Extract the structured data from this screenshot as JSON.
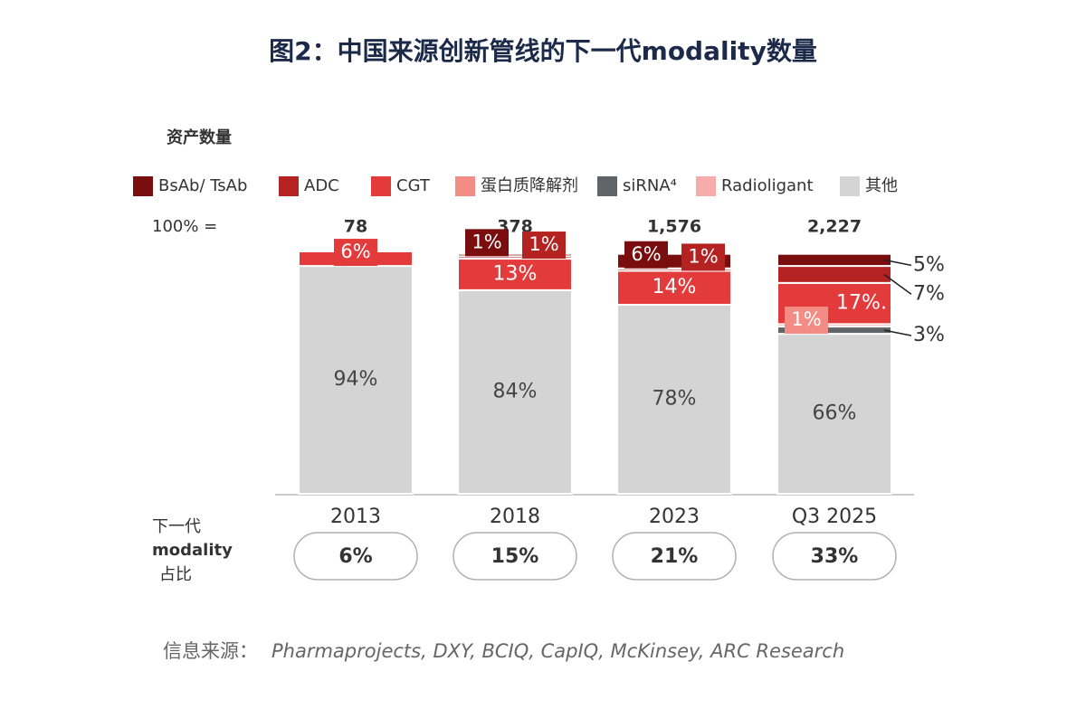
{
  "chart_data": {
    "type": "stacked_bar",
    "title": "图2：中国来源创新管线的下一代modality数量",
    "y_label": "资产数量",
    "total_label": "100% =",
    "share_label": [
      "下一代",
      "modality",
      "占比"
    ],
    "source_label": "信息来源：",
    "source": "Pharmaprojects, DXY, BCIQ, CapIQ, McKinsey, ARC Research",
    "categories": [
      "2013",
      "2018",
      "2023",
      "Q3 2025"
    ],
    "ylim": [
      0,
      100
    ],
    "totals": {
      "values": [
        78,
        378,
        1576,
        2227
      ],
      "value_labels": [
        "78",
        "378",
        "1,576",
        "2,227"
      ]
    },
    "shares": {
      "values": [
        6,
        15,
        21,
        33
      ],
      "value_labels": [
        "6%",
        "15%",
        "21%",
        "33%"
      ]
    },
    "series": [
      {
        "name": "BsAb/ TsAb",
        "color": "#7a0d0d",
        "values": [
          null,
          1,
          6,
          5
        ],
        "value_labels": [
          null,
          "1%",
          "6%",
          "5%"
        ]
      },
      {
        "name": "ADC",
        "color": "#b42222",
        "values": [
          null,
          1,
          1,
          7
        ],
        "value_labels": [
          null,
          "1%",
          "1%",
          "7%"
        ]
      },
      {
        "name": "CGT",
        "color": "#e33b3b",
        "values": [
          6,
          13,
          14,
          17
        ],
        "value_labels": [
          "6%",
          "13%",
          "14%",
          "17%."
        ]
      },
      {
        "name": "蛋白质降解剂",
        "color": "#f28c84",
        "values": [
          null,
          null,
          null,
          1
        ],
        "value_labels": [
          null,
          null,
          null,
          "1%"
        ]
      },
      {
        "name": "siRNA⁴",
        "color": "#5f6468",
        "values": [
          null,
          null,
          null,
          3
        ],
        "value_labels": [
          null,
          null,
          null,
          "3%"
        ]
      },
      {
        "name": "Radioligant",
        "color": "#f7abab",
        "values": [
          null,
          null,
          null,
          null
        ],
        "value_labels": [
          null,
          null,
          null,
          null
        ]
      },
      {
        "name": "其他",
        "color": "#d4d4d4",
        "values": [
          94,
          84,
          78,
          66
        ],
        "value_labels": [
          "94%",
          "84%",
          "78%",
          "66%"
        ]
      }
    ]
  }
}
